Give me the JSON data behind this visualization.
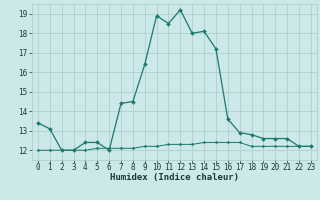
{
  "xlabel": "Humidex (Indice chaleur)",
  "x": [
    0,
    1,
    2,
    3,
    4,
    5,
    6,
    7,
    8,
    9,
    10,
    11,
    12,
    13,
    14,
    15,
    16,
    17,
    18,
    19,
    20,
    21,
    22,
    23
  ],
  "line1": [
    13.4,
    13.1,
    12.0,
    12.0,
    12.4,
    12.4,
    12.0,
    14.4,
    14.5,
    16.4,
    18.9,
    18.5,
    19.2,
    18.0,
    18.1,
    17.2,
    13.6,
    12.9,
    12.8,
    12.6,
    12.6,
    12.6,
    12.2,
    12.2
  ],
  "line2": [
    12.0,
    12.0,
    12.0,
    12.0,
    12.0,
    12.1,
    12.1,
    12.1,
    12.1,
    12.2,
    12.2,
    12.3,
    12.3,
    12.3,
    12.4,
    12.4,
    12.4,
    12.4,
    12.2,
    12.2,
    12.2,
    12.2,
    12.2,
    12.2
  ],
  "line_color": "#1a7a6e",
  "bg_color": "#cce8e8",
  "grid_color": "#aacccc",
  "ylim": [
    11.5,
    19.5
  ],
  "xlim": [
    -0.5,
    23.5
  ],
  "yticks": [
    12,
    13,
    14,
    15,
    16,
    17,
    18,
    19
  ],
  "xticks": [
    0,
    1,
    2,
    3,
    4,
    5,
    6,
    7,
    8,
    9,
    10,
    11,
    12,
    13,
    14,
    15,
    16,
    17,
    18,
    19,
    20,
    21,
    22,
    23
  ],
  "marker_size": 2.0,
  "line_width": 0.9,
  "tick_fontsize": 5.5,
  "xlabel_fontsize": 6.5
}
